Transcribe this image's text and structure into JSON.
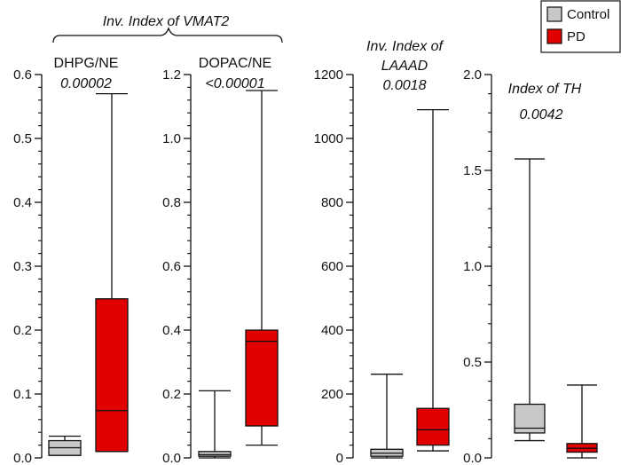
{
  "figure": {
    "group_title": "Inv. Index of VMAT2",
    "legend": [
      {
        "label": "Control",
        "color": "#c8c8c8"
      },
      {
        "label": "PD",
        "color": "#e00000"
      }
    ]
  },
  "chart_data": [
    {
      "type": "box",
      "title": "DHPG/NE",
      "p_value": "0.00002",
      "ylim": [
        0,
        0.6
      ],
      "yticks": [
        "0.0",
        "0.1",
        "0.2",
        "0.3",
        "0.4",
        "0.5",
        "0.6"
      ],
      "tick_values": [
        0,
        0.1,
        0.2,
        0.3,
        0.4,
        0.5,
        0.6
      ],
      "series": [
        {
          "name": "Control",
          "min": 0.004,
          "q1": 0.004,
          "median": 0.016,
          "q3": 0.027,
          "max": 0.034
        },
        {
          "name": "PD",
          "min": 0.01,
          "q1": 0.01,
          "median": 0.074,
          "q3": 0.249,
          "max": 0.57
        }
      ]
    },
    {
      "type": "box",
      "title": "DOPAC/NE",
      "p_value": "<0.00001",
      "ylim": [
        0,
        1.2
      ],
      "yticks": [
        "0.0",
        "0.2",
        "0.4",
        "0.6",
        "0.8",
        "1.0",
        "1.2"
      ],
      "tick_values": [
        0,
        0.2,
        0.4,
        0.6,
        0.8,
        1.0,
        1.2
      ],
      "series": [
        {
          "name": "Control",
          "min": 0.0,
          "q1": 0.005,
          "median": 0.01,
          "q3": 0.02,
          "max": 0.21
        },
        {
          "name": "PD",
          "min": 0.04,
          "q1": 0.1,
          "median": 0.365,
          "q3": 0.4,
          "max": 1.15
        }
      ]
    },
    {
      "type": "box",
      "title_lines": [
        "Inv. Index of",
        "LAAAD"
      ],
      "p_value": "0.0018",
      "ylim": [
        0,
        1200
      ],
      "yticks": [
        "0",
        "200",
        "400",
        "600",
        "800",
        "1000",
        "1200"
      ],
      "tick_values": [
        0,
        200,
        400,
        600,
        800,
        1000,
        1200
      ],
      "series": [
        {
          "name": "Control",
          "min": 0,
          "q1": 5,
          "median": 15,
          "q3": 27,
          "max": 262
        },
        {
          "name": "PD",
          "min": 22,
          "q1": 40,
          "median": 88,
          "q3": 155,
          "max": 1090
        }
      ]
    },
    {
      "type": "box",
      "title": "Index of TH",
      "p_value": "0.0042",
      "ylim": [
        0,
        2.0
      ],
      "yticks": [
        "0.0",
        "0.5",
        "1.0",
        "1.5",
        "2.0"
      ],
      "tick_values": [
        0,
        0.5,
        1.0,
        1.5,
        2.0
      ],
      "series": [
        {
          "name": "Control",
          "min": 0.09,
          "q1": 0.13,
          "median": 0.155,
          "q3": 0.28,
          "max": 1.56
        },
        {
          "name": "PD",
          "min": 0.0,
          "q1": 0.03,
          "median": 0.05,
          "q3": 0.075,
          "max": 0.38
        }
      ]
    }
  ]
}
